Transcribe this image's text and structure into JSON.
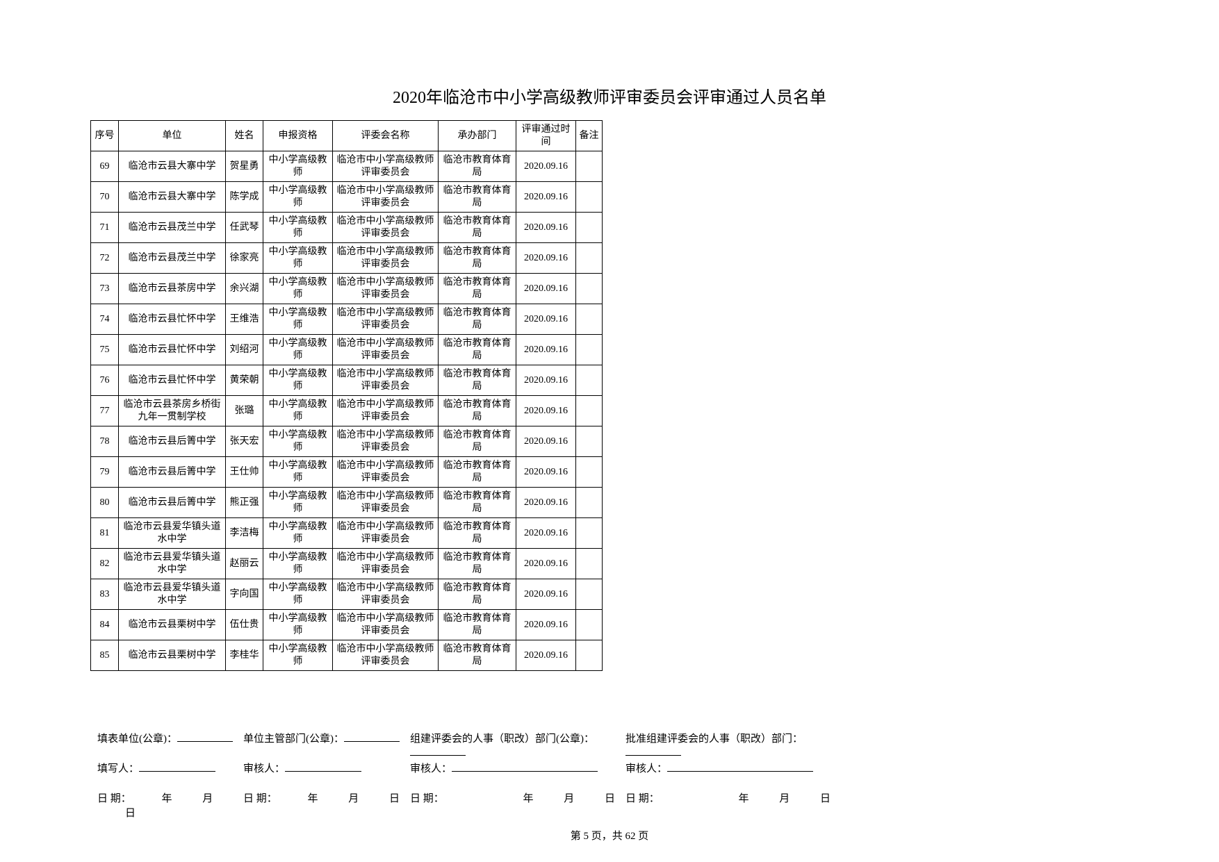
{
  "title": "2020年临沧市中小学高级教师评审委员会评审通过人员名单",
  "headers": {
    "seq": "序号",
    "unit": "单位",
    "name": "姓名",
    "qual": "申报资格",
    "committee": "评委会名称",
    "dept": "承办部门",
    "date": "评审通过时间",
    "note": "备注"
  },
  "rows": [
    {
      "seq": "69",
      "unit": "临沧市云县大寨中学",
      "name": "贺星勇",
      "qual": "中小学高级教师",
      "committee": "临沧市中小学高级教师评审委员会",
      "dept": "临沧市教育体育局",
      "date": "2020.09.16",
      "note": ""
    },
    {
      "seq": "70",
      "unit": "临沧市云县大寨中学",
      "name": "陈学成",
      "qual": "中小学高级教师",
      "committee": "临沧市中小学高级教师评审委员会",
      "dept": "临沧市教育体育局",
      "date": "2020.09.16",
      "note": ""
    },
    {
      "seq": "71",
      "unit": "临沧市云县茂兰中学",
      "name": "任武琴",
      "qual": "中小学高级教师",
      "committee": "临沧市中小学高级教师评审委员会",
      "dept": "临沧市教育体育局",
      "date": "2020.09.16",
      "note": ""
    },
    {
      "seq": "72",
      "unit": "临沧市云县茂兰中学",
      "name": "徐家亮",
      "qual": "中小学高级教师",
      "committee": "临沧市中小学高级教师评审委员会",
      "dept": "临沧市教育体育局",
      "date": "2020.09.16",
      "note": ""
    },
    {
      "seq": "73",
      "unit": "临沧市云县茶房中学",
      "name": "余兴湖",
      "qual": "中小学高级教师",
      "committee": "临沧市中小学高级教师评审委员会",
      "dept": "临沧市教育体育局",
      "date": "2020.09.16",
      "note": ""
    },
    {
      "seq": "74",
      "unit": "临沧市云县忙怀中学",
      "name": "王维浩",
      "qual": "中小学高级教师",
      "committee": "临沧市中小学高级教师评审委员会",
      "dept": "临沧市教育体育局",
      "date": "2020.09.16",
      "note": ""
    },
    {
      "seq": "75",
      "unit": "临沧市云县忙怀中学",
      "name": "刘绍河",
      "qual": "中小学高级教师",
      "committee": "临沧市中小学高级教师评审委员会",
      "dept": "临沧市教育体育局",
      "date": "2020.09.16",
      "note": ""
    },
    {
      "seq": "76",
      "unit": "临沧市云县忙怀中学",
      "name": "黄荣朝",
      "qual": "中小学高级教师",
      "committee": "临沧市中小学高级教师评审委员会",
      "dept": "临沧市教育体育局",
      "date": "2020.09.16",
      "note": ""
    },
    {
      "seq": "77",
      "unit": "临沧市云县茶房乡桥街九年一贯制学校",
      "name": "张璐",
      "qual": "中小学高级教师",
      "committee": "临沧市中小学高级教师评审委员会",
      "dept": "临沧市教育体育局",
      "date": "2020.09.16",
      "note": ""
    },
    {
      "seq": "78",
      "unit": "临沧市云县后箐中学",
      "name": "张天宏",
      "qual": "中小学高级教师",
      "committee": "临沧市中小学高级教师评审委员会",
      "dept": "临沧市教育体育局",
      "date": "2020.09.16",
      "note": ""
    },
    {
      "seq": "79",
      "unit": "临沧市云县后箐中学",
      "name": "王仕帅",
      "qual": "中小学高级教师",
      "committee": "临沧市中小学高级教师评审委员会",
      "dept": "临沧市教育体育局",
      "date": "2020.09.16",
      "note": ""
    },
    {
      "seq": "80",
      "unit": "临沧市云县后箐中学",
      "name": "熊正强",
      "qual": "中小学高级教师",
      "committee": "临沧市中小学高级教师评审委员会",
      "dept": "临沧市教育体育局",
      "date": "2020.09.16",
      "note": ""
    },
    {
      "seq": "81",
      "unit": "临沧市云县爱华镇头道水中学",
      "name": "李洁梅",
      "qual": "中小学高级教师",
      "committee": "临沧市中小学高级教师评审委员会",
      "dept": "临沧市教育体育局",
      "date": "2020.09.16",
      "note": ""
    },
    {
      "seq": "82",
      "unit": "临沧市云县爱华镇头道水中学",
      "name": "赵丽云",
      "qual": "中小学高级教师",
      "committee": "临沧市中小学高级教师评审委员会",
      "dept": "临沧市教育体育局",
      "date": "2020.09.16",
      "note": ""
    },
    {
      "seq": "83",
      "unit": "临沧市云县爱华镇头道水中学",
      "name": "字向国",
      "qual": "中小学高级教师",
      "committee": "临沧市中小学高级教师评审委员会",
      "dept": "临沧市教育体育局",
      "date": "2020.09.16",
      "note": ""
    },
    {
      "seq": "84",
      "unit": "临沧市云县栗树中学",
      "name": "伍仕贵",
      "qual": "中小学高级教师",
      "committee": "临沧市中小学高级教师评审委员会",
      "dept": "临沧市教育体育局",
      "date": "2020.09.16",
      "note": ""
    },
    {
      "seq": "85",
      "unit": "临沧市云县栗树中学",
      "name": "李桂华",
      "qual": "中小学高级教师",
      "committee": "临沧市中小学高级教师评审委员会",
      "dept": "临沧市教育体育局",
      "date": "2020.09.16",
      "note": ""
    }
  ],
  "footer": {
    "fill_unit_label": "填表单位(公章)：",
    "supervise_label": "单位主管部门(公章)：",
    "org_label": "组建评委会的人事（职改）部门(公章)：",
    "approve_label": "批准组建评委会的人事（职改）部门：",
    "filler_label": "填写人：",
    "reviewer_label": "审核人：",
    "date_label": "日  期：",
    "year": "年",
    "month": "月",
    "day": "日"
  },
  "page_info": "第 5 页，共 62 页"
}
